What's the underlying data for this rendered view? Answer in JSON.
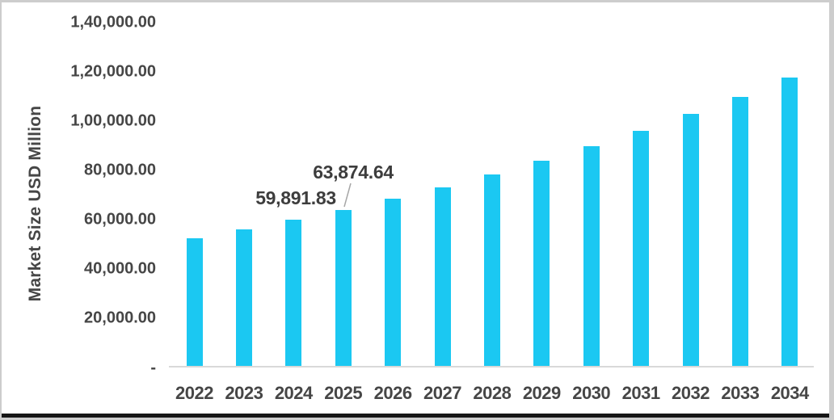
{
  "chart_data": {
    "type": "bar",
    "title": "",
    "xlabel": "",
    "ylabel": "Market Size USD Million",
    "categories": [
      "2022",
      "2023",
      "2024",
      "2025",
      "2026",
      "2027",
      "2028",
      "2029",
      "2030",
      "2031",
      "2032",
      "2033",
      "2034"
    ],
    "values": [
      52300,
      56000,
      59891.83,
      63874.64,
      68300,
      73100,
      78200,
      83700,
      89600,
      95900,
      102600,
      109700,
      117400
    ],
    "ylim": [
      0,
      140000
    ],
    "ytick_interval": 20000,
    "ytick_labels": [
      "-",
      "20,000.00",
      "40,000.00",
      "60,000.00",
      "80,000.00",
      "1,00,000.00",
      "1,20,000.00",
      "1,40,000.00"
    ],
    "grid": false,
    "legend": false,
    "annotations": [
      {
        "category": "2024",
        "text": "59,891.83",
        "leader_line": false
      },
      {
        "category": "2025",
        "text": "63,874.64",
        "leader_line": true
      }
    ],
    "colors": {
      "bar": "#1BC8F2",
      "tick_text": "#464646",
      "data_label_text": "#3D3D3D",
      "axis_line": "#D9D9D9",
      "leader_line": "#A6A6A6",
      "frame_edge": "#CDCDCD",
      "frame_bottom": "#161616"
    }
  }
}
